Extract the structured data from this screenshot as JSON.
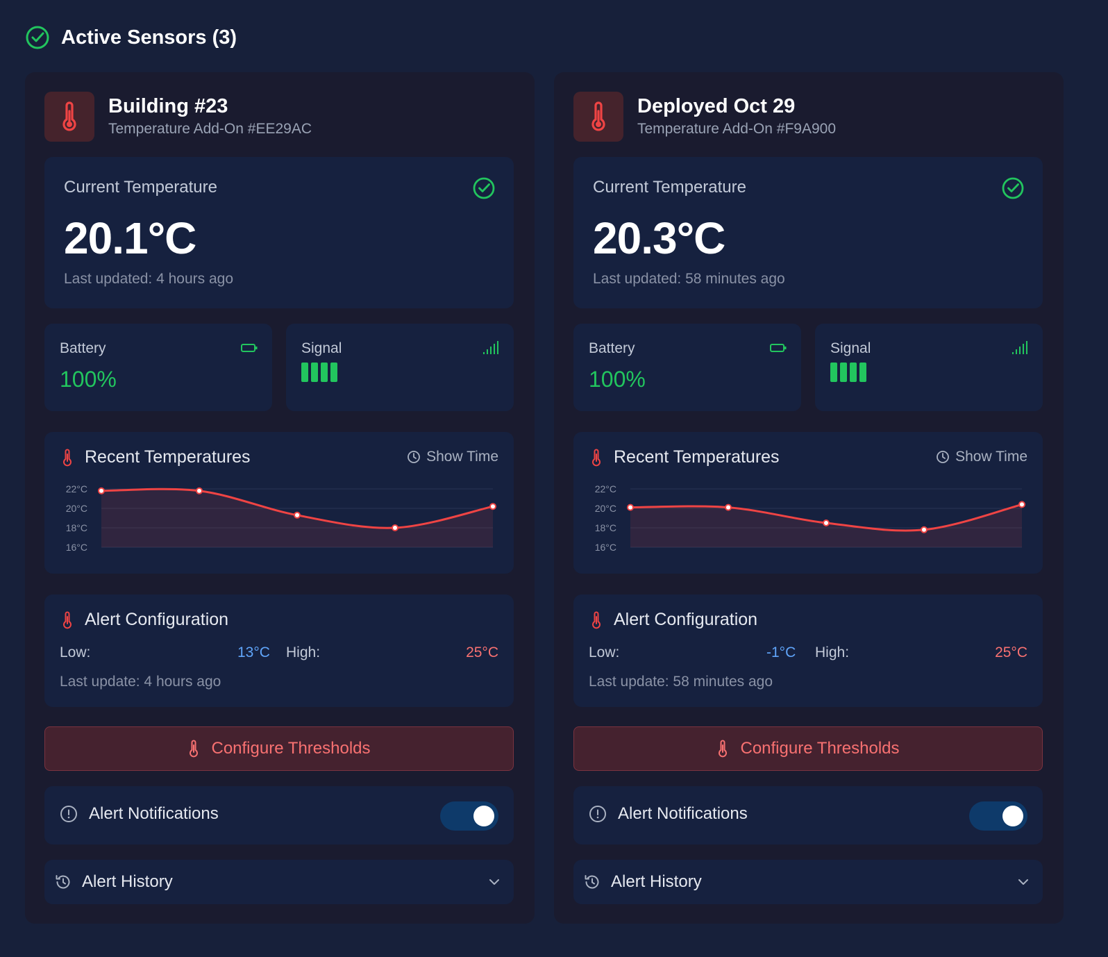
{
  "header": {
    "title": "Active Sensors (3)"
  },
  "colors": {
    "accent_green": "#22c55e",
    "accent_red": "#ef4444",
    "low_blue": "#60a5fa",
    "high_red": "#f87171"
  },
  "sensors": [
    {
      "name": "Building #23",
      "subtitle": "Temperature Add-On #EE29AC",
      "current_label": "Current Temperature",
      "current_value": "20.1°C",
      "last_updated": "Last updated: 4 hours ago",
      "battery_label": "Battery",
      "battery_value": "100%",
      "signal_label": "Signal",
      "signal_level": 4,
      "chart_title": "Recent Temperatures",
      "show_time_label": "Show Time",
      "alert_title": "Alert Configuration",
      "low_label": "Low:",
      "low_value": "13°C",
      "high_label": "High:",
      "high_value": "25°C",
      "alert_last_update": "Last update: 4 hours ago",
      "configure_label": "Configure Thresholds",
      "notifications_label": "Alert Notifications",
      "notifications_on": true,
      "history_label": "Alert History"
    },
    {
      "name": "Deployed Oct 29",
      "subtitle": "Temperature Add-On #F9A900",
      "current_label": "Current Temperature",
      "current_value": "20.3°C",
      "last_updated": "Last updated: 58 minutes ago",
      "battery_label": "Battery",
      "battery_value": "100%",
      "signal_label": "Signal",
      "signal_level": 4,
      "chart_title": "Recent Temperatures",
      "show_time_label": "Show Time",
      "alert_title": "Alert Configuration",
      "low_label": "Low:",
      "low_value": "-1°C",
      "high_label": "High:",
      "high_value": "25°C",
      "alert_last_update": "Last update: 58 minutes ago",
      "configure_label": "Configure Thresholds",
      "notifications_label": "Alert Notifications",
      "notifications_on": true,
      "history_label": "Alert History"
    }
  ],
  "chart_data": [
    {
      "type": "area",
      "title": "Recent Temperatures",
      "y_ticks": [
        "22°C",
        "20°C",
        "18°C",
        "16°C"
      ],
      "ylim": [
        16,
        22
      ],
      "series": [
        {
          "values": [
            21.8,
            21.8,
            19.3,
            18.0,
            20.2
          ]
        }
      ]
    },
    {
      "type": "area",
      "title": "Recent Temperatures",
      "y_ticks": [
        "22°C",
        "20°C",
        "18°C",
        "16°C"
      ],
      "ylim": [
        16,
        22
      ],
      "series": [
        {
          "values": [
            20.1,
            20.1,
            18.5,
            17.8,
            20.4
          ]
        }
      ]
    }
  ]
}
